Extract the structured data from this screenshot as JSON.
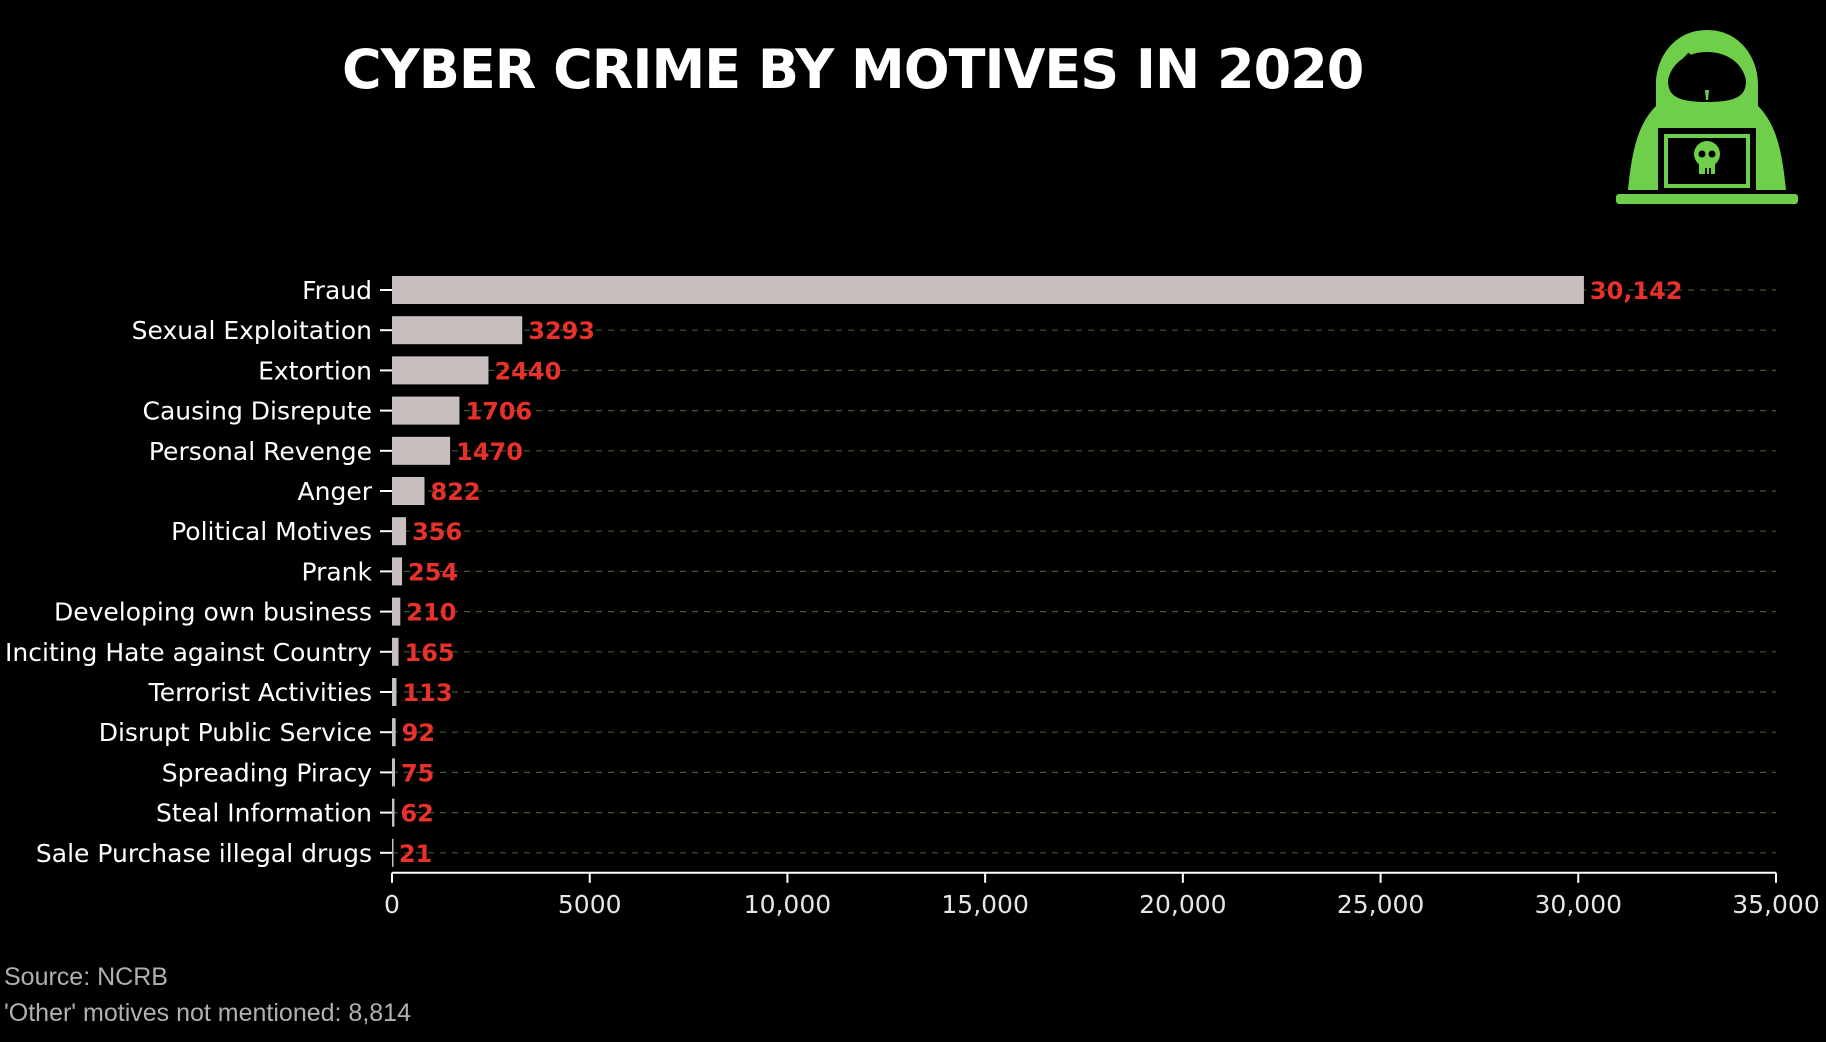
{
  "chart_data": {
    "type": "bar",
    "orientation": "horizontal",
    "title": "CYBER CRIME BY MOTIVES IN 2020",
    "categories": [
      "Fraud",
      "Sexual Exploitation",
      "Extortion",
      "Causing Disrepute",
      "Personal Revenge",
      "Anger",
      "Political Motives",
      "Prank",
      "Developing own business",
      "Inciting Hate against Country",
      "Terrorist Activities",
      "Disrupt Public Service",
      "Spreading Piracy",
      "Steal Information",
      "Sale Purchase illegal drugs"
    ],
    "values": [
      30142,
      3293,
      2440,
      1706,
      1470,
      822,
      356,
      254,
      210,
      165,
      113,
      92,
      75,
      62,
      21
    ],
    "value_labels": [
      "30,142",
      "3293",
      "2440",
      "1706",
      "1470",
      "822",
      "356",
      "254",
      "210",
      "165",
      "113",
      "92",
      "75",
      "62",
      "21"
    ],
    "xlim": [
      0,
      35000
    ],
    "xticks": [
      0,
      5000,
      10000,
      15000,
      20000,
      25000,
      30000,
      35000
    ],
    "xtick_labels": [
      "0",
      "5000",
      "10,000",
      "15,000",
      "20,000",
      "25,000",
      "30,000",
      "35,000"
    ],
    "xlabel": "",
    "ylabel": "",
    "grid": "dashed horizontal",
    "legend": "none"
  },
  "footer": {
    "source": "Source: NCRB",
    "note": "'Other' motives not mentioned: 8,814"
  },
  "colors": {
    "background": "#000000",
    "bar": "#c7c0be",
    "value_label": "#e8312b",
    "grid": "#3e5a2e",
    "axis": "#ffffff",
    "icon_green": "#6fcf4a"
  },
  "icons": {
    "logo": "hooded-hacker-with-laptop-skull-icon"
  }
}
